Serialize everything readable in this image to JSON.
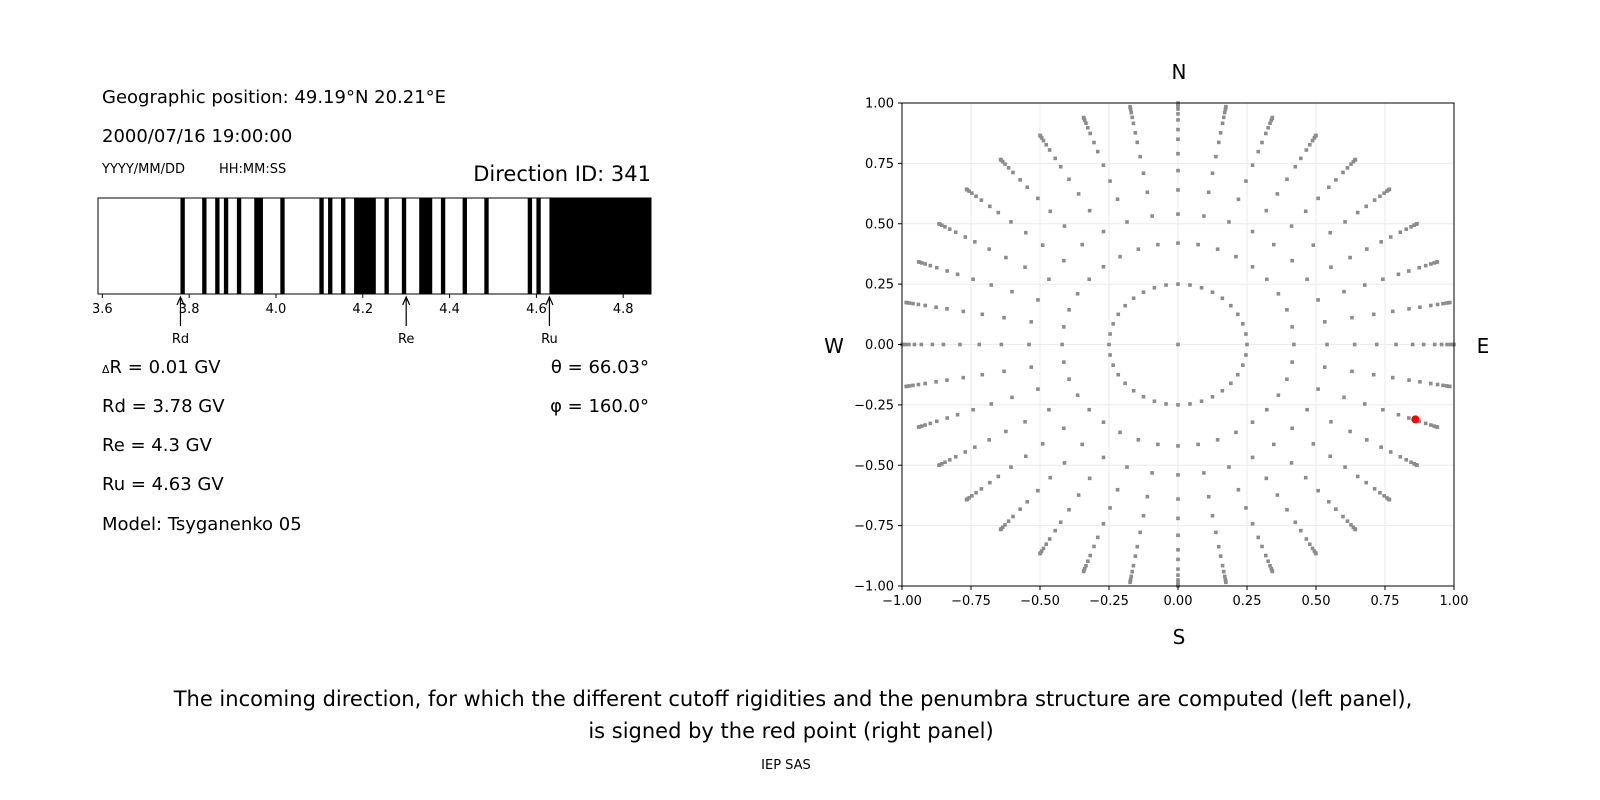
{
  "info": {
    "geo_position": "Geographic position: 49.19°N 20.21°E",
    "datetime": "2000/07/16 19:00:00",
    "date_format": "YYYY/MM/DD",
    "time_format": "HH:MM:SS",
    "direction_id": "Direction ID: 341"
  },
  "stats": {
    "delta_r_symbol": "Δ",
    "delta_r": "R = 0.01 GV",
    "rd": "Rd = 3.78 GV",
    "re": "Re = 4.3 GV",
    "ru": "Ru = 4.63 GV",
    "model": "Model: Tsyganenko 05",
    "theta": "θ = 66.03°",
    "phi": "φ = 160.0°"
  },
  "caption": {
    "line1": "The incoming direction, for which the different cutoff rigidities and the penumbra structure are computed (left panel),",
    "line2": "is signed by the red point (right panel)",
    "credit": "IEP SAS"
  },
  "chart_data": [
    {
      "type": "penumbra-strip",
      "xlim": [
        3.59,
        4.864
      ],
      "xticks": [
        3.6,
        3.8,
        4.0,
        4.2,
        4.4,
        4.6,
        4.8
      ],
      "xtick_labels": [
        "3.6",
        "3.8",
        "4.0",
        "4.2",
        "4.4",
        "4.6",
        "4.8"
      ],
      "bin_width": 0.01,
      "forbidden_intervals": [
        [
          3.78,
          3.79
        ],
        [
          3.83,
          3.84
        ],
        [
          3.86,
          3.87
        ],
        [
          3.88,
          3.89
        ],
        [
          3.91,
          3.92
        ],
        [
          3.95,
          3.97
        ],
        [
          4.01,
          4.02
        ],
        [
          4.1,
          4.11
        ],
        [
          4.12,
          4.13
        ],
        [
          4.15,
          4.16
        ],
        [
          4.18,
          4.23
        ],
        [
          4.25,
          4.26
        ],
        [
          4.29,
          4.3
        ],
        [
          4.33,
          4.36
        ],
        [
          4.38,
          4.39
        ],
        [
          4.43,
          4.44
        ],
        [
          4.48,
          4.49
        ],
        [
          4.58,
          4.59
        ],
        [
          4.6,
          4.61
        ],
        [
          4.63,
          4.864
        ]
      ],
      "colors": {
        "forbidden": "#000000",
        "allowed": "#ffffff"
      },
      "markers": [
        {
          "label": "Rd",
          "value": 3.78
        },
        {
          "label": "Re",
          "value": 4.3
        },
        {
          "label": "Ru",
          "value": 4.63
        }
      ]
    },
    {
      "type": "scatter",
      "xlim": [
        -1,
        1
      ],
      "ylim": [
        -1,
        1
      ],
      "grid": true,
      "ticks": [
        -1.0,
        -0.75,
        -0.5,
        -0.25,
        0.0,
        0.25,
        0.5,
        0.75,
        1.0
      ],
      "tick_labels": [
        "−1.00",
        "−0.75",
        "−0.50",
        "−0.25",
        "0.00",
        "0.25",
        "0.50",
        "0.75",
        "1.00"
      ],
      "compass": {
        "north": "N",
        "south": "S",
        "west": "W",
        "east": "E"
      },
      "directions_azimuth_step_deg": 10,
      "directions_radii": [
        0.25,
        0.42,
        0.54,
        0.64,
        0.72,
        0.79,
        0.85,
        0.89,
        0.93,
        0.955,
        0.975,
        0.988,
        0.996,
        1.0
      ],
      "center_point": [
        0,
        0
      ],
      "highlighted_point": {
        "x": 0.86,
        "y": -0.31
      },
      "colors": {
        "points": "#8c8c8c",
        "highlight": "#ff0000",
        "grid": "#ebebeb"
      }
    }
  ]
}
